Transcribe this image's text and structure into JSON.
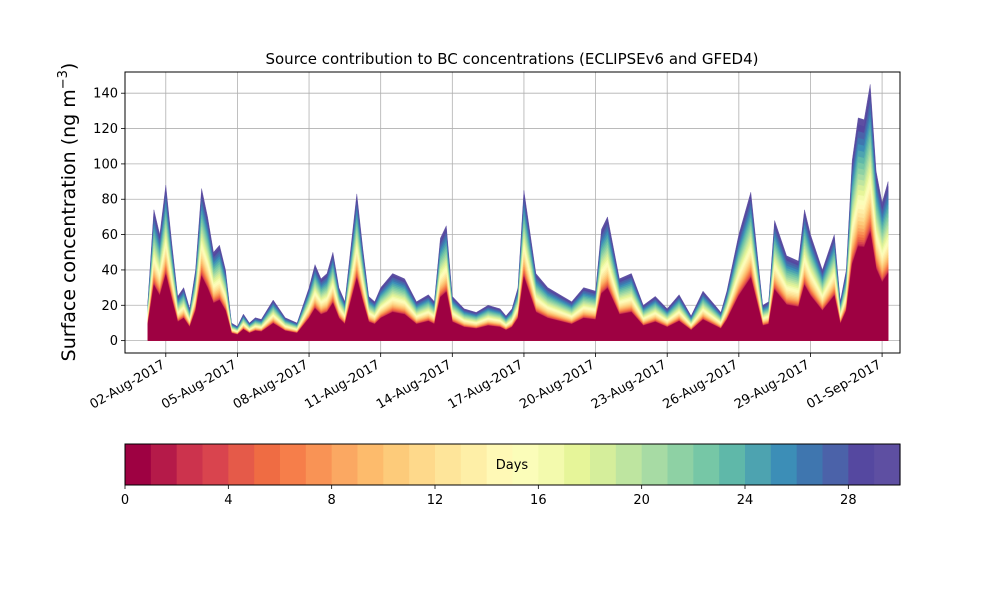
{
  "chart_data": {
    "type": "area",
    "subtype": "stacked",
    "title": "Source contribution to BC concentrations (ECLIPSEv6 and GFED4)",
    "ylabel": "Surface concentration (ng m⁻³)",
    "ylabel_main": "Surface concentration (ng m",
    "ylabel_exp": "−3",
    "ylabel_close": ")",
    "xlabel": "",
    "ylim": [
      -7,
      152
    ],
    "yticks": [
      0,
      20,
      40,
      60,
      80,
      100,
      120,
      140
    ],
    "xlim": [
      "2017-07-31T07:00",
      "2017-09-01T18:00"
    ],
    "xticks": [
      {
        "date": "2017-08-02",
        "label": "02-Aug-2017"
      },
      {
        "date": "2017-08-05",
        "label": "05-Aug-2017"
      },
      {
        "date": "2017-08-08",
        "label": "08-Aug-2017"
      },
      {
        "date": "2017-08-11",
        "label": "11-Aug-2017"
      },
      {
        "date": "2017-08-14",
        "label": "14-Aug-2017"
      },
      {
        "date": "2017-08-17",
        "label": "17-Aug-2017"
      },
      {
        "date": "2017-08-20",
        "label": "20-Aug-2017"
      },
      {
        "date": "2017-08-23",
        "label": "23-Aug-2017"
      },
      {
        "date": "2017-08-26",
        "label": "26-Aug-2017"
      },
      {
        "date": "2017-08-29",
        "label": "29-Aug-2017"
      },
      {
        "date": "2017-09-01",
        "label": "01-Sep-2017"
      }
    ],
    "grid": true,
    "total": {
      "dates": [
        "2017-08-01T06:00",
        "2017-08-01T12:00",
        "2017-08-01T18:00",
        "2017-08-02T00:00",
        "2017-08-02T06:00",
        "2017-08-02T12:00",
        "2017-08-02T18:00",
        "2017-08-03T00:00",
        "2017-08-03T06:00",
        "2017-08-03T12:00",
        "2017-08-03T18:00",
        "2017-08-04T00:00",
        "2017-08-04T06:00",
        "2017-08-04T12:00",
        "2017-08-04T18:00",
        "2017-08-05T00:00",
        "2017-08-05T06:00",
        "2017-08-05T12:00",
        "2017-08-05T18:00",
        "2017-08-06T00:00",
        "2017-08-06T12:00",
        "2017-08-07T00:00",
        "2017-08-07T12:00",
        "2017-08-08T00:00",
        "2017-08-08T06:00",
        "2017-08-08T12:00",
        "2017-08-08T18:00",
        "2017-08-09T00:00",
        "2017-08-09T06:00",
        "2017-08-09T12:00",
        "2017-08-10T00:00",
        "2017-08-10T06:00",
        "2017-08-10T12:00",
        "2017-08-10T18:00",
        "2017-08-11T00:00",
        "2017-08-11T12:00",
        "2017-08-12T00:00",
        "2017-08-12T12:00",
        "2017-08-13T00:00",
        "2017-08-13T06:00",
        "2017-08-13T12:00",
        "2017-08-13T18:00",
        "2017-08-14T00:00",
        "2017-08-14T12:00",
        "2017-08-15T00:00",
        "2017-08-15T12:00",
        "2017-08-16T00:00",
        "2017-08-16T06:00",
        "2017-08-16T12:00",
        "2017-08-16T18:00",
        "2017-08-17T00:00",
        "2017-08-17T12:00",
        "2017-08-18T00:00",
        "2017-08-18T12:00",
        "2017-08-19T00:00",
        "2017-08-19T12:00",
        "2017-08-20T00:00",
        "2017-08-20T06:00",
        "2017-08-20T12:00",
        "2017-08-21T00:00",
        "2017-08-21T12:00",
        "2017-08-22T00:00",
        "2017-08-22T12:00",
        "2017-08-23T00:00",
        "2017-08-23T12:00",
        "2017-08-24T00:00",
        "2017-08-24T12:00",
        "2017-08-25T00:00",
        "2017-08-25T06:00",
        "2017-08-25T12:00",
        "2017-08-26T00:00",
        "2017-08-26T12:00",
        "2017-08-27T00:00",
        "2017-08-27T06:00",
        "2017-08-27T12:00",
        "2017-08-28T00:00",
        "2017-08-28T12:00",
        "2017-08-28T18:00",
        "2017-08-29T00:00",
        "2017-08-29T12:00",
        "2017-08-30T00:00",
        "2017-08-30T06:00",
        "2017-08-30T12:00",
        "2017-08-30T18:00",
        "2017-08-31T00:00",
        "2017-08-31T06:00",
        "2017-08-31T12:00",
        "2017-08-31T18:00",
        "2017-09-01T00:00",
        "2017-09-01T06:00"
      ],
      "values": [
        22,
        74,
        60,
        88,
        55,
        25,
        30,
        18,
        40,
        86,
        70,
        50,
        54,
        40,
        10,
        8,
        15,
        10,
        13,
        12,
        23,
        13,
        10,
        30,
        43,
        35,
        38,
        50,
        30,
        22,
        83,
        52,
        25,
        22,
        30,
        38,
        35,
        22,
        26,
        22,
        58,
        65,
        25,
        18,
        16,
        20,
        18,
        14,
        18,
        30,
        85,
        38,
        30,
        26,
        22,
        30,
        28,
        63,
        70,
        35,
        38,
        20,
        25,
        18,
        26,
        14,
        28,
        20,
        16,
        28,
        60,
        84,
        20,
        22,
        68,
        48,
        45,
        74,
        60,
        40,
        60,
        22,
        40,
        102,
        126,
        125,
        145,
        96,
        78,
        90
      ]
    },
    "colorbar": {
      "label": "Days",
      "min": 0,
      "max": 30,
      "ticks": [
        0,
        4,
        8,
        12,
        16,
        20,
        24,
        28
      ],
      "colors": [
        "#9e0142",
        "#b51a49",
        "#cc334d",
        "#d9444e",
        "#e55a49",
        "#ef6c43",
        "#f67e4a",
        "#f99355",
        "#fba862",
        "#fdbb6c",
        "#fdcb7a",
        "#fed98b",
        "#fee59a",
        "#feefa7",
        "#fff9b6",
        "#fbfdb9",
        "#f3faad",
        "#e6f599",
        "#d5ee9b",
        "#bee5a0",
        "#a7dba4",
        "#8ed1a4",
        "#76c7a6",
        "#5fb8a9",
        "#4da3b0",
        "#3c8eb7",
        "#3f76af",
        "#4b62a9",
        "#5548a0",
        "#5e4fa2"
      ]
    }
  }
}
